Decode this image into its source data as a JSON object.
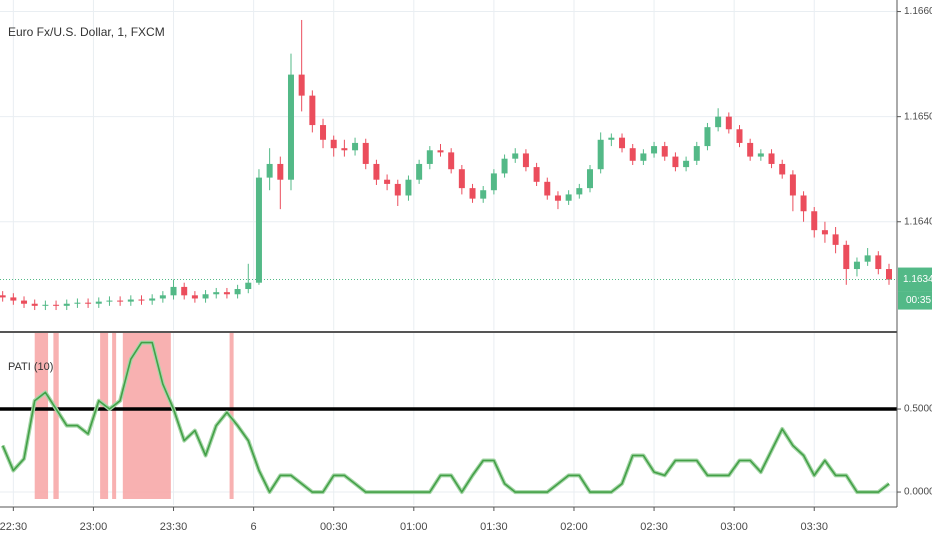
{
  "chart_data": [
    {
      "type": "candlestick",
      "title": "Euro Fx/U.S. Dollar, 1, FXCM",
      "x": [
        -4,
        0,
        4,
        8,
        12,
        16,
        20,
        24,
        28,
        32,
        36,
        40,
        44,
        48,
        52,
        56,
        60,
        64,
        68,
        72,
        76,
        80,
        84,
        88,
        92,
        96,
        100,
        104,
        108,
        112,
        116,
        120,
        124,
        128,
        132,
        136,
        140,
        144,
        148,
        152,
        156,
        160,
        164,
        168,
        172,
        176,
        180,
        184,
        188,
        192,
        196,
        200,
        204,
        208,
        212,
        216,
        220,
        224,
        228,
        232,
        236,
        240,
        244,
        248,
        252,
        256,
        260,
        264,
        268,
        272,
        276,
        280,
        284,
        288,
        292,
        296,
        300,
        304,
        308,
        312,
        316,
        320,
        324,
        328
      ],
      "open": [
        1.1633,
        1.16328,
        1.16325,
        1.16322,
        1.1632,
        1.16321,
        1.1632,
        1.16322,
        1.16323,
        1.16322,
        1.16324,
        1.16325,
        1.16324,
        1.16326,
        1.16325,
        1.16327,
        1.1633,
        1.16338,
        1.1633,
        1.16327,
        1.16331,
        1.16333,
        1.16331,
        1.16336,
        1.16342,
        1.16442,
        1.16455,
        1.1644,
        1.1654,
        1.1652,
        1.16492,
        1.16478,
        1.1647,
        1.16468,
        1.16475,
        1.16455,
        1.1644,
        1.16436,
        1.16425,
        1.1644,
        1.16455,
        1.16468,
        1.16466,
        1.1645,
        1.16432,
        1.16422,
        1.1643,
        1.16446,
        1.1646,
        1.16465,
        1.16452,
        1.16438,
        1.16425,
        1.1642,
        1.16426,
        1.16432,
        1.1645,
        1.16478,
        1.1648,
        1.1647,
        1.16458,
        1.16465,
        1.16472,
        1.16462,
        1.16452,
        1.16458,
        1.16472,
        1.1649,
        1.165,
        1.16488,
        1.16475,
        1.16462,
        1.16465,
        1.16455,
        1.16445,
        1.16425,
        1.1641,
        1.16392,
        1.16388,
        1.16378,
        1.16355,
        1.16362,
        1.16368,
        1.16355
      ],
      "high": [
        1.16334,
        1.16332,
        1.16329,
        1.16326,
        1.16325,
        1.16325,
        1.16326,
        1.16327,
        1.16327,
        1.16328,
        1.16329,
        1.16329,
        1.1633,
        1.1633,
        1.16331,
        1.16334,
        1.16345,
        1.16342,
        1.16334,
        1.16335,
        1.16337,
        1.16337,
        1.1634,
        1.1636,
        1.1645,
        1.1647,
        1.16462,
        1.1656,
        1.16592,
        1.16525,
        1.16498,
        1.16482,
        1.16478,
        1.1648,
        1.16479,
        1.16459,
        1.16445,
        1.1644,
        1.16444,
        1.16459,
        1.16472,
        1.16474,
        1.1647,
        1.16454,
        1.16436,
        1.16434,
        1.1645,
        1.16464,
        1.1647,
        1.16469,
        1.16456,
        1.16442,
        1.16429,
        1.1643,
        1.16436,
        1.16454,
        1.16485,
        1.16484,
        1.16484,
        1.16474,
        1.16469,
        1.16476,
        1.16476,
        1.16466,
        1.16462,
        1.16476,
        1.16494,
        1.16508,
        1.16504,
        1.16492,
        1.16479,
        1.16469,
        1.16469,
        1.16459,
        1.16449,
        1.16429,
        1.16414,
        1.164,
        1.16395,
        1.16382,
        1.16366,
        1.16375,
        1.16372,
        1.1636
      ],
      "low": [
        1.16324,
        1.16321,
        1.16318,
        1.16316,
        1.16316,
        1.16316,
        1.16316,
        1.16318,
        1.16318,
        1.16318,
        1.1632,
        1.1632,
        1.1632,
        1.16321,
        1.16321,
        1.16323,
        1.16326,
        1.16326,
        1.16323,
        1.16323,
        1.16327,
        1.16327,
        1.16327,
        1.16332,
        1.1634,
        1.1643,
        1.16412,
        1.1643,
        1.16505,
        1.16485,
        1.1647,
        1.16462,
        1.16462,
        1.16463,
        1.1645,
        1.16435,
        1.1643,
        1.16415,
        1.1642,
        1.16436,
        1.1645,
        1.16462,
        1.16446,
        1.16426,
        1.16418,
        1.16418,
        1.16426,
        1.16442,
        1.16456,
        1.16448,
        1.16434,
        1.16421,
        1.16412,
        1.16416,
        1.16422,
        1.16428,
        1.16446,
        1.16472,
        1.16466,
        1.16454,
        1.16454,
        1.16461,
        1.16458,
        1.16448,
        1.16448,
        1.16454,
        1.16468,
        1.16486,
        1.16484,
        1.16471,
        1.16458,
        1.16458,
        1.16451,
        1.16441,
        1.1641,
        1.164,
        1.16385,
        1.1638,
        1.1637,
        1.1634,
        1.16348,
        1.16358,
        1.1635,
        1.1634
      ],
      "close": [
        1.16328,
        1.16325,
        1.16322,
        1.1632,
        1.16321,
        1.1632,
        1.16322,
        1.16323,
        1.16322,
        1.16324,
        1.16325,
        1.16324,
        1.16326,
        1.16325,
        1.16327,
        1.1633,
        1.16338,
        1.1633,
        1.16327,
        1.16331,
        1.16333,
        1.16331,
        1.16336,
        1.16342,
        1.16442,
        1.16455,
        1.1644,
        1.1654,
        1.1652,
        1.16492,
        1.16478,
        1.1647,
        1.16468,
        1.16475,
        1.16455,
        1.1644,
        1.16436,
        1.16425,
        1.1644,
        1.16455,
        1.16468,
        1.16466,
        1.1645,
        1.16432,
        1.16422,
        1.1643,
        1.16446,
        1.1646,
        1.16465,
        1.16452,
        1.16438,
        1.16425,
        1.1642,
        1.16426,
        1.16432,
        1.1645,
        1.16478,
        1.1648,
        1.1647,
        1.16458,
        1.16465,
        1.16472,
        1.16462,
        1.16452,
        1.16458,
        1.16472,
        1.1649,
        1.165,
        1.16488,
        1.16475,
        1.16462,
        1.16465,
        1.16455,
        1.16445,
        1.16425,
        1.1641,
        1.16392,
        1.16388,
        1.16378,
        1.16355,
        1.16362,
        1.16368,
        1.16355,
        1.16345
      ],
      "up_color": "#53b987",
      "down_color": "#eb4d5c",
      "xlim": [
        -5,
        331
      ],
      "ylim": [
        1.16297,
        1.16611
      ],
      "yticks": [
        {
          "value": 1.164,
          "label": "1.16400"
        },
        {
          "value": 1.165,
          "label": "1.16500"
        },
        {
          "value": 1.166,
          "label": "1.16600"
        }
      ],
      "last_price": 1.16345,
      "countdown": "00:35",
      "grid": true
    },
    {
      "type": "line",
      "title": "PATI (10)",
      "x": [
        -4,
        0,
        4,
        8,
        12,
        16,
        20,
        24,
        28,
        32,
        36,
        40,
        44,
        48,
        52,
        56,
        60,
        64,
        68,
        72,
        76,
        80,
        84,
        88,
        92,
        96,
        100,
        104,
        108,
        112,
        116,
        120,
        124,
        128,
        132,
        136,
        140,
        144,
        148,
        152,
        156,
        160,
        164,
        168,
        172,
        176,
        180,
        184,
        188,
        192,
        196,
        200,
        204,
        208,
        212,
        216,
        220,
        224,
        228,
        232,
        236,
        240,
        244,
        248,
        252,
        256,
        260,
        264,
        268,
        272,
        276,
        280,
        284,
        288,
        292,
        296,
        300,
        304,
        308,
        312,
        316,
        320,
        324,
        328
      ],
      "values": [
        0.28,
        0.13,
        0.2,
        0.55,
        0.6,
        0.5,
        0.4,
        0.4,
        0.35,
        0.55,
        0.5,
        0.55,
        0.8,
        0.9,
        0.9,
        0.65,
        0.5,
        0.31,
        0.37,
        0.22,
        0.4,
        0.48,
        0.4,
        0.31,
        0.13,
        0,
        0.1,
        0.1,
        0.05,
        0,
        0,
        0.1,
        0.1,
        0.05,
        0,
        0,
        0,
        0,
        0,
        0,
        0,
        0.1,
        0.1,
        0,
        0.1,
        0.19,
        0.19,
        0.05,
        0,
        0,
        0,
        0,
        0.05,
        0.1,
        0.1,
        0,
        0,
        0,
        0.05,
        0.22,
        0.22,
        0.12,
        0.1,
        0.19,
        0.19,
        0.19,
        0.1,
        0.1,
        0.1,
        0.19,
        0.19,
        0.12,
        0.25,
        0.38,
        0.28,
        0.22,
        0.1,
        0.19,
        0.1,
        0.1,
        0,
        0,
        0,
        0.05
      ],
      "color": "#43a047",
      "highlight_ranges": [
        [
          8,
          13
        ],
        [
          15,
          17
        ],
        [
          32.5,
          35.5
        ],
        [
          37,
          38.5
        ],
        [
          41,
          59
        ],
        [
          81,
          82.5
        ]
      ],
      "highlight_color": "#f7a9a8",
      "level": 0.5,
      "xlim": [
        -5,
        331
      ],
      "ylim": [
        -0.078,
        0.958
      ],
      "yticks": [
        {
          "value": 0,
          "label": "0.0000"
        },
        {
          "value": 0.5,
          "label": "0.5000"
        }
      ],
      "xticks": [
        {
          "value": 0,
          "label": "22:30"
        },
        {
          "value": 30,
          "label": "23:00"
        },
        {
          "value": 60,
          "label": "23:30"
        },
        {
          "value": 90,
          "label": "6"
        },
        {
          "value": 120,
          "label": "00:30"
        },
        {
          "value": 150,
          "label": "01:00"
        },
        {
          "value": 180,
          "label": "01:30"
        },
        {
          "value": 210,
          "label": "02:00"
        },
        {
          "value": 240,
          "label": "02:30"
        },
        {
          "value": 270,
          "label": "03:00"
        },
        {
          "value": 300,
          "label": "03:30"
        }
      ],
      "grid": true
    }
  ]
}
